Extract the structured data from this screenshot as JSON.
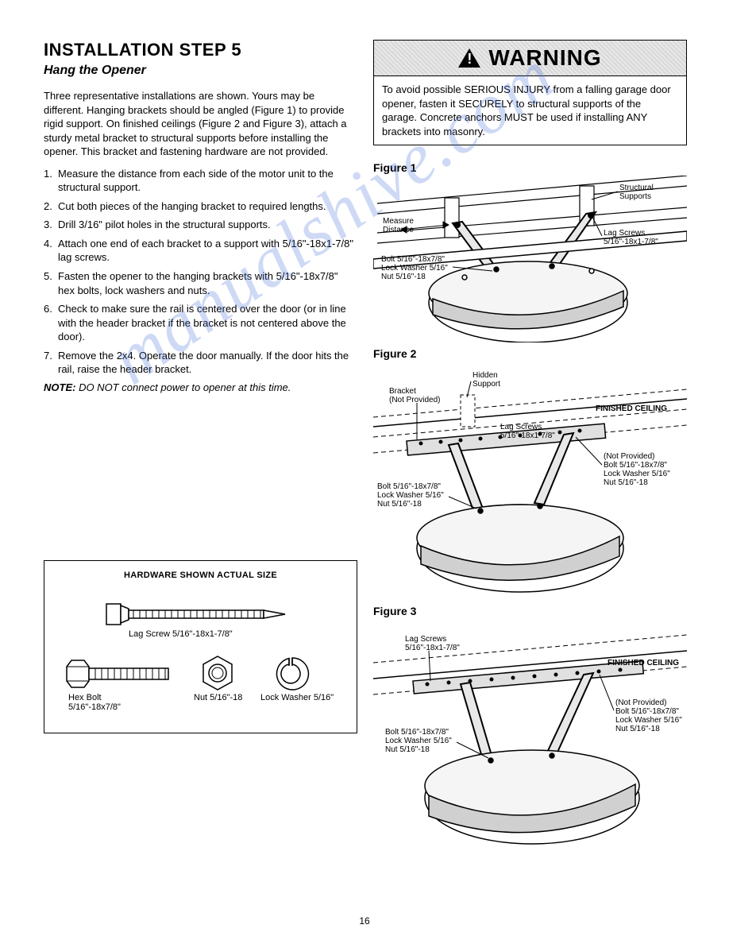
{
  "title": "INSTALLATION STEP 5",
  "subtitle": "Hang the Opener",
  "intro": "Three representative installations are shown. Yours may be different. Hanging brackets should be angled (Figure 1) to provide rigid support. On finished ceilings (Figure 2 and Figure 3), attach a sturdy metal bracket to structural supports before installing the opener. This bracket and fastening hardware are not provided.",
  "steps": [
    "Measure the distance from each side of the motor unit to the structural support.",
    "Cut both pieces of the hanging bracket to required lengths.",
    "Drill 3/16\" pilot holes in the structural supports.",
    "Attach one end of each bracket to a support with 5/16\"-18x1-7/8\" lag screws.",
    "Fasten the opener to the hanging brackets with 5/16\"-18x7/8\" hex bolts, lock washers and nuts.",
    "Check to make sure the rail is centered over the door (or in line with the header bracket if the bracket is not centered above the door).",
    "Remove the 2x4. Operate the door manually. If the door hits the rail, raise the header bracket."
  ],
  "note_label": "NOTE:",
  "note_text": " DO NOT connect power to opener at this time.",
  "warning": {
    "header": "WARNING",
    "body": "To avoid possible SERIOUS INJURY from a falling garage door opener, fasten it SECURELY to structural supports of the garage. Concrete anchors MUST be used if installing ANY brackets into masonry."
  },
  "figures": {
    "f1": {
      "label": "Figure 1",
      "callouts": {
        "structural": "Structural\nSupports",
        "measure": "Measure\nDistance",
        "lag": "Lag Screws\n5/16\"-18x1-7/8\"",
        "bolt": "Bolt 5/16\"-18x7/8\"\nLock Washer 5/16\"\nNut 5/16\"-18"
      }
    },
    "f2": {
      "label": "Figure 2",
      "callouts": {
        "hidden": "Hidden\nSupport",
        "bracket": "Bracket\n(Not Provided)",
        "finished": "FINISHED CEILING",
        "lag": "Lag Screws\n5/16\"-18x1-7/8\"",
        "notprov": "(Not Provided)\nBolt 5/16\"-18x7/8\"\nLock Washer 5/16\"\nNut 5/16\"-18",
        "bolt": "Bolt 5/16\"-18x7/8\"\nLock Washer 5/16\"\nNut 5/16\"-18"
      }
    },
    "f3": {
      "label": "Figure 3",
      "callouts": {
        "lag": "Lag Screws\n5/16\"-18x1-7/8\"",
        "finished": "FINISHED CEILING",
        "notprov": "(Not Provided)\nBolt 5/16\"-18x7/8\"\nLock Washer 5/16\"\nNut 5/16\"-18",
        "bolt": "Bolt 5/16\"-18x7/8\"\nLock Washer 5/16\"\nNut 5/16\"-18"
      }
    }
  },
  "hardware": {
    "title": "HARDWARE SHOWN ACTUAL SIZE",
    "lag": "Lag Screw 5/16\"-18x1-7/8\"",
    "hex": "Hex Bolt\n5/16\"-18x7/8\"",
    "nut": "Nut 5/16\"-18",
    "lock": "Lock Washer 5/16\""
  },
  "page": "16",
  "watermark": "manualshive.com"
}
